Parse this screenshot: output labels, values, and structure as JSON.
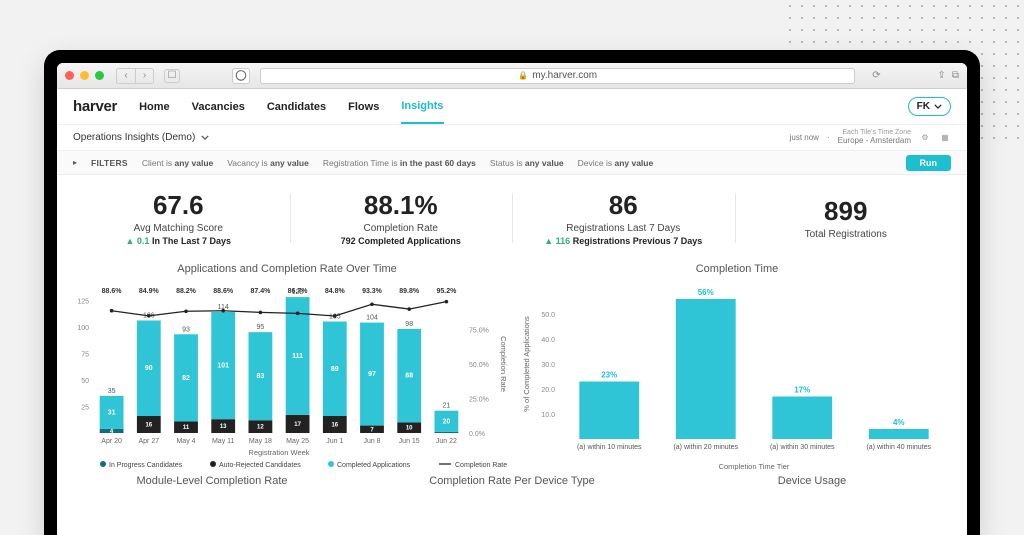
{
  "browser": {
    "url": "my.harver.com",
    "lock_icon": "🔒"
  },
  "header": {
    "logo": "harver",
    "nav": [
      "Home",
      "Vacancies",
      "Candidates",
      "Flows",
      "Insights"
    ],
    "active_nav_index": 4,
    "user_initials": "FK"
  },
  "subheader": {
    "dropdown_label": "Operations Insights (Demo)",
    "updated": "just now",
    "tz_line1": "Each Tile's Time Zone",
    "tz_line2": "Europe - Amsterdam"
  },
  "filters": {
    "label": "FILTERS",
    "items": [
      {
        "field": "Client",
        "op": "is",
        "val": "any value"
      },
      {
        "field": "Vacancy",
        "op": "is",
        "val": "any value"
      },
      {
        "field": "Registration Time",
        "op": "is",
        "val": "in the past 60 days"
      },
      {
        "field": "Status",
        "op": "is",
        "val": "any value"
      },
      {
        "field": "Device",
        "op": "is",
        "val": "any value"
      }
    ],
    "run_label": "Run"
  },
  "kpis": [
    {
      "value": "67.6",
      "label": "Avg Matching Score",
      "delta": "0.1",
      "delta_text": "In The Last 7 Days",
      "delta_up": true
    },
    {
      "value": "88.1%",
      "label": "Completion Rate",
      "sub": "792 Completed Applications"
    },
    {
      "value": "86",
      "label": "Registrations Last 7 Days",
      "delta": "116",
      "delta_text": "Registrations Previous 7 Days",
      "delta_up": true
    },
    {
      "value": "899",
      "label": "Total Registrations"
    }
  ],
  "left_chart": {
    "type": "bar+line",
    "title": "Applications and Completion Rate Over Time",
    "x_label": "Registration Week",
    "y_left_ticks": [
      25,
      50,
      75,
      100,
      125
    ],
    "y_left_max": 130,
    "y_right_label": "Completion Rate",
    "y_right_ticks": [
      "0.0%",
      "25.0%",
      "50.0%",
      "75.0%"
    ],
    "categories": [
      "Apr 20",
      "Apr 27",
      "May 4",
      "May 11",
      "May 18",
      "May 25",
      "Jun 1",
      "Jun 8",
      "Jun 15",
      "Jun 22"
    ],
    "stacks": [
      {
        "name": "In Progress Candidates",
        "color": "#136d78"
      },
      {
        "name": "Auto-Rejected Candidates",
        "color": "#222222"
      },
      {
        "name": "Completed Applications",
        "color": "#2fc5d6"
      }
    ],
    "series": [
      {
        "in_progress": 4,
        "auto_rej": 0,
        "completed": 31,
        "total": 35,
        "rate": 88.6
      },
      {
        "in_progress": 0,
        "auto_rej": 16,
        "completed": 90,
        "total": 106,
        "rate": 84.9
      },
      {
        "in_progress": 0,
        "auto_rej": 11,
        "completed": 82,
        "total": 93,
        "rate": 88.2
      },
      {
        "in_progress": 0,
        "auto_rej": 13,
        "completed": 101,
        "total": 114,
        "rate": 88.6
      },
      {
        "in_progress": 0,
        "auto_rej": 12,
        "completed": 83,
        "total": 95,
        "rate": 87.4
      },
      {
        "in_progress": 0,
        "auto_rej": 17,
        "completed": 111,
        "total": 128,
        "rate": 86.7
      },
      {
        "in_progress": 0,
        "auto_rej": 16,
        "completed": 89,
        "total": 105,
        "rate": 84.8
      },
      {
        "in_progress": 0,
        "auto_rej": 7,
        "completed": 97,
        "total": 104,
        "rate": 93.3
      },
      {
        "in_progress": 0,
        "auto_rej": 10,
        "completed": 88,
        "total": 98,
        "rate": 89.8
      },
      {
        "in_progress": 1,
        "auto_rej": 0,
        "completed": 20,
        "total": 21,
        "rate": 95.2
      }
    ],
    "line_name": "Completion Rate",
    "line_color": "#222222"
  },
  "right_chart": {
    "type": "bar",
    "title": "Completion Time",
    "y_label": "% of Completed Applications",
    "x_label": "Completion Time Tier",
    "y_ticks": [
      10,
      20,
      30,
      40,
      50
    ],
    "y_max": 60,
    "bars": [
      {
        "label": "(a) within 10 minutes",
        "value": 23
      },
      {
        "label": "(a) within 20 minutes",
        "value": 56
      },
      {
        "label": "(a) within 30 minutes",
        "value": 17
      },
      {
        "label": "(a) within 40 minutes",
        "value": 4
      }
    ],
    "bar_color": "#2fc5d6",
    "value_label_color": "#1bbfcf"
  },
  "section_titles": [
    "Module-Level Completion Rate",
    "Completion Rate Per Device Type",
    "Device Usage"
  ],
  "colors": {
    "accent": "#1bbfcf",
    "green": "#2bb673"
  }
}
